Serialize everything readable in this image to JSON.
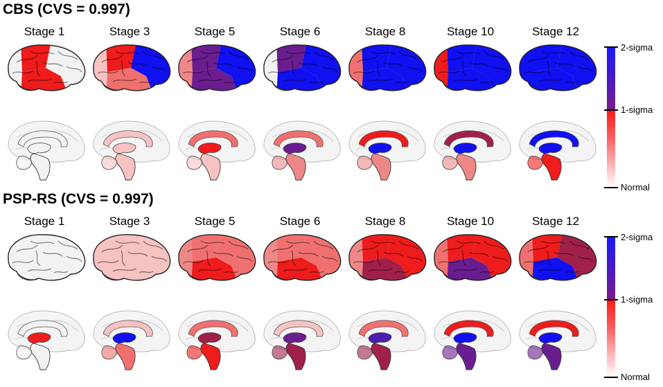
{
  "stages": [
    "Stage 1",
    "Stage 3",
    "Stage 5",
    "Stage 6",
    "Stage 8",
    "Stage 10",
    "Stage 12"
  ],
  "colorbar": {
    "top_label": "2-sigma",
    "mid_label": "1-sigma",
    "bottom_label": "Normal"
  },
  "colors": {
    "normal": "#f2f2f2",
    "light": "#f6c2c2",
    "pink": "#ee8888",
    "salmon": "#f07070",
    "red": "#ee1c1c",
    "maroon": "#a0204a",
    "purple": "#6a1d8f",
    "violet": "#4a1fb0",
    "blue": "#1010f0"
  },
  "panels": [
    {
      "title": "CBS (CVS = 0.997)",
      "lateral": [
        [
          "normal",
          "red",
          "red",
          "normal"
        ],
        [
          "blue",
          "salmon",
          "red",
          "light"
        ],
        [
          "blue",
          "purple",
          "purple",
          "pink"
        ],
        [
          "blue",
          "blue",
          "purple",
          "normal"
        ],
        [
          "blue",
          "blue",
          "blue",
          "salmon"
        ],
        [
          "blue",
          "blue",
          "blue",
          "red"
        ],
        [
          "blue",
          "blue",
          "blue",
          "blue"
        ]
      ],
      "medial": [
        [
          "normal",
          "normal",
          "normal"
        ],
        [
          "light",
          "light",
          "light"
        ],
        [
          "salmon",
          "red",
          "light"
        ],
        [
          "salmon",
          "purple",
          "pink"
        ],
        [
          "red",
          "blue",
          "pink"
        ],
        [
          "maroon",
          "blue",
          "pink"
        ],
        [
          "blue",
          "blue",
          "red"
        ]
      ]
    },
    {
      "title": "PSP-RS (CVS = 0.997)",
      "lateral": [
        [
          "normal",
          "normal",
          "normal",
          "normal"
        ],
        [
          "light",
          "light",
          "light",
          "light"
        ],
        [
          "salmon",
          "red",
          "salmon",
          "pink"
        ],
        [
          "salmon",
          "red",
          "salmon",
          "pink"
        ],
        [
          "red",
          "maroon",
          "red",
          "pink"
        ],
        [
          "red",
          "purple",
          "red",
          "salmon"
        ],
        [
          "maroon",
          "blue",
          "red",
          "salmon"
        ]
      ],
      "medial": [
        [
          "normal",
          "red",
          "normal"
        ],
        [
          "light",
          "blue",
          "salmon"
        ],
        [
          "salmon",
          "maroon",
          "red"
        ],
        [
          "light",
          "purple",
          "maroon"
        ],
        [
          "salmon",
          "violet",
          "maroon"
        ],
        [
          "red",
          "blue",
          "purple"
        ],
        [
          "red",
          "blue",
          "purple"
        ]
      ]
    }
  ]
}
